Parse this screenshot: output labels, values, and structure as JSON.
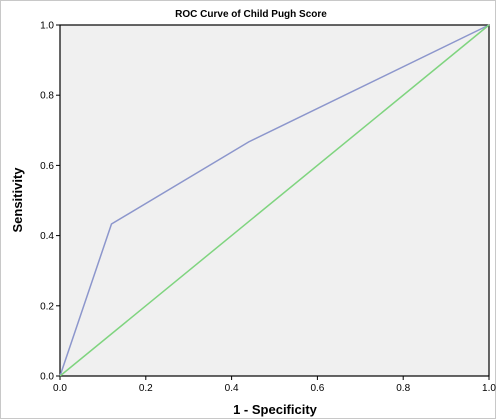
{
  "chart_data": {
    "type": "line",
    "title": "ROC Curve of Child Pugh Score",
    "xlabel": "1 - Specificity",
    "ylabel": "Sensitivity",
    "xlim": [
      0,
      1
    ],
    "ylim": [
      0,
      1
    ],
    "x_ticks": [
      "0.0",
      "0.2",
      "0.4",
      "0.6",
      "0.8",
      "1.0"
    ],
    "y_ticks": [
      "0.0",
      "0.2",
      "0.4",
      "0.6",
      "0.8",
      "1.0"
    ],
    "grid": false,
    "background_color": "#f0f0f0",
    "series": [
      {
        "color": "#8c96cc",
        "points": [
          [
            0.0,
            0.0
          ],
          [
            0.12,
            0.433
          ],
          [
            0.44,
            0.667
          ],
          [
            1.0,
            1.0
          ]
        ]
      },
      {
        "color": "#7fd47f",
        "points": [
          [
            0.0,
            0.0
          ],
          [
            1.0,
            1.0
          ]
        ]
      }
    ]
  }
}
